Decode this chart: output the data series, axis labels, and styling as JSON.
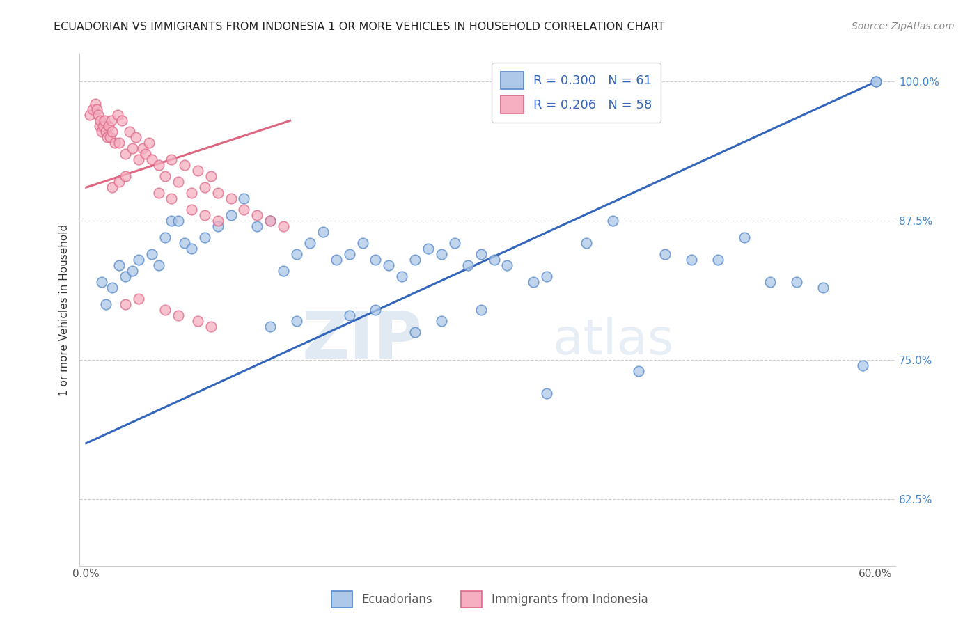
{
  "title": "ECUADORIAN VS IMMIGRANTS FROM INDONESIA 1 OR MORE VEHICLES IN HOUSEHOLD CORRELATION CHART",
  "source": "Source: ZipAtlas.com",
  "xlabel_bottom": [
    "Ecuadorians",
    "Immigrants from Indonesia"
  ],
  "ylabel": "1 or more Vehicles in Household",
  "xlim": [
    -0.005,
    0.615
  ],
  "ylim": [
    0.565,
    1.025
  ],
  "xticks": [
    0.0,
    0.1,
    0.2,
    0.3,
    0.4,
    0.5,
    0.6
  ],
  "xticklabels": [
    "0.0%",
    "",
    "",
    "",
    "",
    "",
    "60.0%"
  ],
  "yticks": [
    0.625,
    0.75,
    0.875,
    1.0
  ],
  "yticklabels": [
    "62.5%",
    "75.0%",
    "87.5%",
    "100.0%"
  ],
  "blue_R": 0.3,
  "blue_N": 61,
  "pink_R": 0.206,
  "pink_N": 58,
  "blue_color": "#adc8e8",
  "pink_color": "#f5afc0",
  "blue_edge_color": "#5588cc",
  "pink_edge_color": "#e06888",
  "blue_line_color": "#3366bb",
  "pink_line_color": "#dd6680",
  "blue_trend_x": [
    0.0,
    0.6
  ],
  "blue_trend_y": [
    0.675,
    1.0
  ],
  "pink_trend_x": [
    0.0,
    0.155
  ],
  "pink_trend_y": [
    0.905,
    0.965
  ],
  "blue_scatter_x": [
    0.012,
    0.015,
    0.02,
    0.025,
    0.03,
    0.035,
    0.04,
    0.05,
    0.055,
    0.06,
    0.065,
    0.07,
    0.075,
    0.08,
    0.09,
    0.1,
    0.11,
    0.12,
    0.13,
    0.14,
    0.15,
    0.16,
    0.17,
    0.18,
    0.19,
    0.2,
    0.21,
    0.22,
    0.23,
    0.24,
    0.25,
    0.26,
    0.27,
    0.28,
    0.29,
    0.3,
    0.31,
    0.32,
    0.34,
    0.35,
    0.38,
    0.4,
    0.44,
    0.46,
    0.48,
    0.5,
    0.52,
    0.54,
    0.56,
    0.59,
    0.6,
    0.14,
    0.16,
    0.2,
    0.22,
    0.25,
    0.27,
    0.3,
    0.35,
    0.42,
    0.6
  ],
  "blue_scatter_y": [
    0.82,
    0.8,
    0.815,
    0.835,
    0.825,
    0.83,
    0.84,
    0.845,
    0.835,
    0.86,
    0.875,
    0.875,
    0.855,
    0.85,
    0.86,
    0.87,
    0.88,
    0.895,
    0.87,
    0.875,
    0.83,
    0.845,
    0.855,
    0.865,
    0.84,
    0.845,
    0.855,
    0.84,
    0.835,
    0.825,
    0.84,
    0.85,
    0.845,
    0.855,
    0.835,
    0.845,
    0.84,
    0.835,
    0.82,
    0.825,
    0.855,
    0.875,
    0.845,
    0.84,
    0.84,
    0.86,
    0.82,
    0.82,
    0.815,
    0.745,
    1.0,
    0.78,
    0.785,
    0.79,
    0.795,
    0.775,
    0.785,
    0.795,
    0.72,
    0.74,
    1.0
  ],
  "pink_scatter_x": [
    0.003,
    0.005,
    0.007,
    0.008,
    0.009,
    0.01,
    0.011,
    0.012,
    0.013,
    0.014,
    0.015,
    0.016,
    0.017,
    0.018,
    0.019,
    0.02,
    0.022,
    0.024,
    0.025,
    0.027,
    0.03,
    0.033,
    0.035,
    0.038,
    0.04,
    0.043,
    0.045,
    0.048,
    0.05,
    0.055,
    0.06,
    0.065,
    0.07,
    0.075,
    0.08,
    0.085,
    0.09,
    0.095,
    0.1,
    0.11,
    0.12,
    0.13,
    0.14,
    0.15,
    0.02,
    0.025,
    0.03,
    0.055,
    0.065,
    0.08,
    0.09,
    0.1,
    0.03,
    0.04,
    0.06,
    0.07,
    0.085,
    0.095
  ],
  "pink_scatter_y": [
    0.97,
    0.975,
    0.98,
    0.975,
    0.97,
    0.96,
    0.965,
    0.955,
    0.96,
    0.965,
    0.955,
    0.95,
    0.96,
    0.95,
    0.965,
    0.955,
    0.945,
    0.97,
    0.945,
    0.965,
    0.935,
    0.955,
    0.94,
    0.95,
    0.93,
    0.94,
    0.935,
    0.945,
    0.93,
    0.925,
    0.915,
    0.93,
    0.91,
    0.925,
    0.9,
    0.92,
    0.905,
    0.915,
    0.9,
    0.895,
    0.885,
    0.88,
    0.875,
    0.87,
    0.905,
    0.91,
    0.915,
    0.9,
    0.895,
    0.885,
    0.88,
    0.875,
    0.8,
    0.805,
    0.795,
    0.79,
    0.785,
    0.78
  ],
  "watermark_zip": "ZIP",
  "watermark_atlas": "atlas",
  "background_color": "#ffffff",
  "grid_color": "#cccccc"
}
